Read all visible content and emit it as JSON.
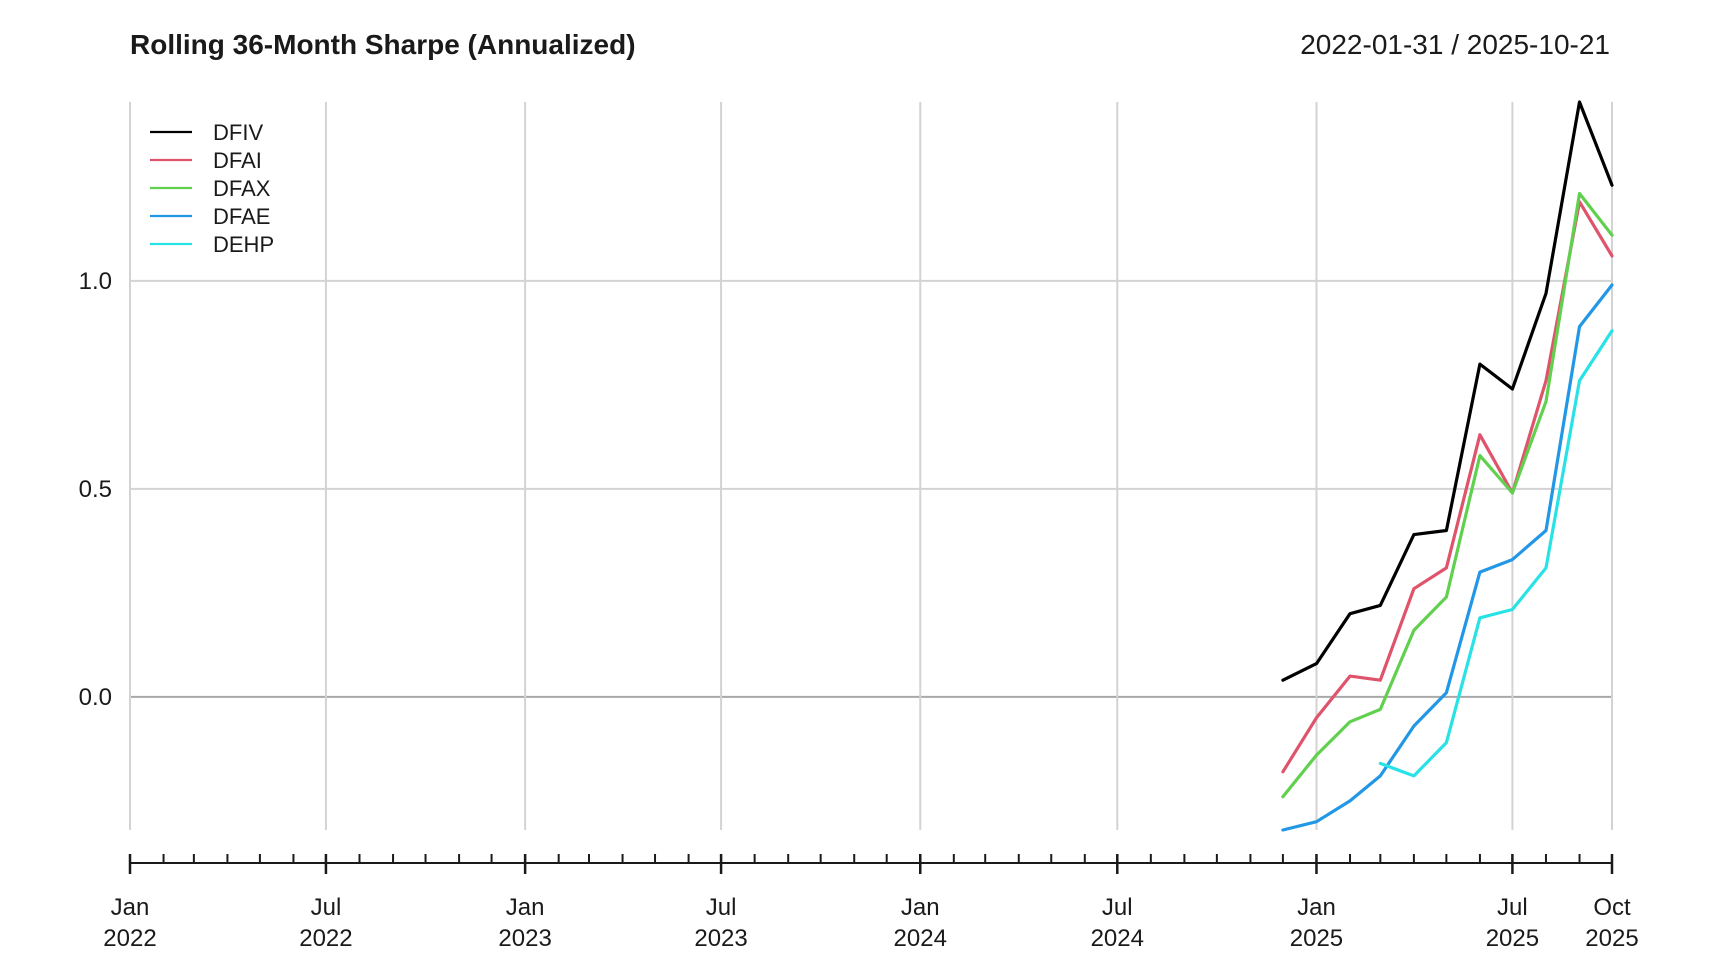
{
  "chart_data": {
    "type": "line",
    "title": "Rolling 36-Month Sharpe (Annualized)",
    "date_range": "2022-01-31 / 2025-10-21",
    "xlabel": "",
    "ylabel": "",
    "x_range": [
      "2022-01-01",
      "2025-10-01"
    ],
    "ylim": [
      -0.32,
      1.43
    ],
    "y_ticks": [
      {
        "value": 0.0,
        "label": "0.0"
      },
      {
        "value": 0.5,
        "label": "0.5"
      },
      {
        "value": 1.0,
        "label": "1.0"
      }
    ],
    "x_ticks": [
      {
        "date": "2022-01-01",
        "month": "Jan",
        "year": "2022"
      },
      {
        "date": "2022-07-01",
        "month": "Jul",
        "year": "2022"
      },
      {
        "date": "2023-01-01",
        "month": "Jan",
        "year": "2023"
      },
      {
        "date": "2023-07-01",
        "month": "Jul",
        "year": "2023"
      },
      {
        "date": "2024-01-01",
        "month": "Jan",
        "year": "2024"
      },
      {
        "date": "2024-07-01",
        "month": "Jul",
        "year": "2024"
      },
      {
        "date": "2025-01-01",
        "month": "Jan",
        "year": "2025"
      },
      {
        "date": "2025-07-01",
        "month": "Jul",
        "year": "2025"
      },
      {
        "date": "2025-10-01",
        "month": "Oct",
        "year": "2025"
      }
    ],
    "grid": true,
    "legend_position": "top-left",
    "x": [
      "2024-12-01",
      "2025-01-01",
      "2025-02-01",
      "2025-03-01",
      "2025-04-01",
      "2025-05-01",
      "2025-06-01",
      "2025-07-01",
      "2025-08-01",
      "2025-09-01",
      "2025-10-01"
    ],
    "series": [
      {
        "name": "DFIV",
        "color": "#000000",
        "values": [
          0.04,
          0.08,
          0.2,
          0.22,
          0.39,
          0.4,
          0.8,
          0.74,
          0.97,
          1.43,
          1.23
        ]
      },
      {
        "name": "DFAI",
        "color": "#DF536B",
        "values": [
          -0.18,
          -0.05,
          0.05,
          0.04,
          0.26,
          0.31,
          0.63,
          0.49,
          0.76,
          1.19,
          1.06
        ]
      },
      {
        "name": "DFAX",
        "color": "#61D04F",
        "values": [
          -0.24,
          -0.14,
          -0.06,
          -0.03,
          0.16,
          0.24,
          0.58,
          0.49,
          0.71,
          1.21,
          1.11
        ]
      },
      {
        "name": "DFAE",
        "color": "#2297E6",
        "values": [
          -0.32,
          -0.3,
          -0.25,
          -0.19,
          -0.07,
          0.01,
          0.3,
          0.33,
          0.4,
          0.89,
          0.99
        ]
      },
      {
        "name": "DEHP",
        "color": "#28E2E5",
        "values": [
          null,
          null,
          null,
          -0.16,
          -0.19,
          -0.11,
          0.19,
          0.21,
          0.31,
          0.76,
          0.88
        ]
      }
    ]
  }
}
